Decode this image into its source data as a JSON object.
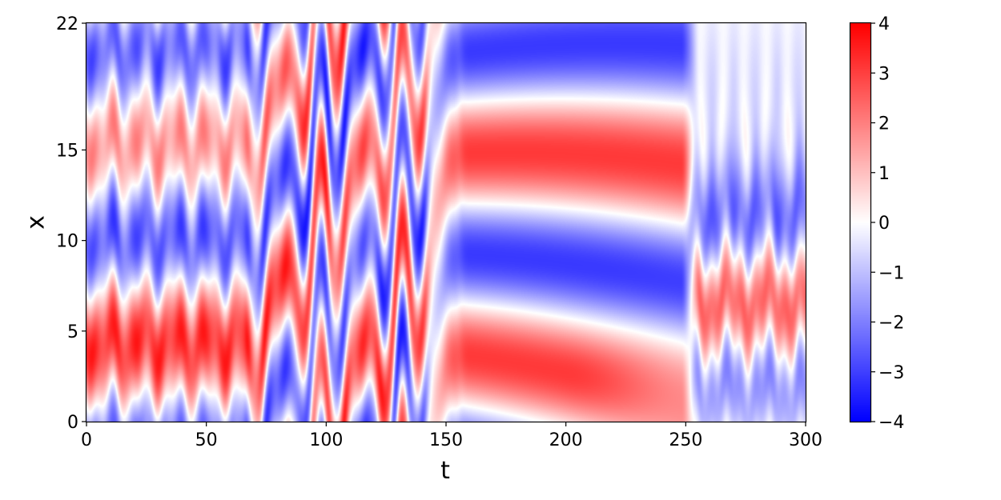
{
  "chart_data": {
    "type": "heatmap",
    "title": "",
    "xlabel": "t",
    "ylabel": "x",
    "xlim": [
      0,
      300
    ],
    "ylim": [
      0,
      22
    ],
    "x_ticks": [
      0,
      50,
      100,
      150,
      200,
      250,
      300
    ],
    "y_ticks": [
      0,
      5,
      10,
      15,
      22
    ],
    "colormap": "bwr",
    "colorbar": {
      "range": [
        -4,
        4
      ],
      "ticks": [
        "4",
        "3",
        "2",
        "1",
        "0",
        "−1",
        "−2",
        "−3",
        "−4"
      ],
      "tick_values": [
        4,
        3,
        2,
        1,
        0,
        -1,
        -2,
        -3,
        -4
      ]
    },
    "colors": {
      "low": "#0000ff",
      "mid": "#ffffff",
      "high": "#ff0000"
    },
    "regimes": [
      {
        "t": [
          0,
          70
        ],
        "pattern": "quasi-steady oscillating bands: positive near x 4-9 and 16-20, negative near x 10-14 and 20-22"
      },
      {
        "t": [
          70,
          150
        ],
        "pattern": "chaotic transient with strong oscillations"
      },
      {
        "t": [
          150,
          250
        ],
        "pattern": "slowly drifting traveling structure; positive band x 16 to 10 and x 7 to 3"
      },
      {
        "t": [
          250,
          300
        ],
        "pattern": "abrupt transition to new oscillating pattern"
      }
    ]
  }
}
